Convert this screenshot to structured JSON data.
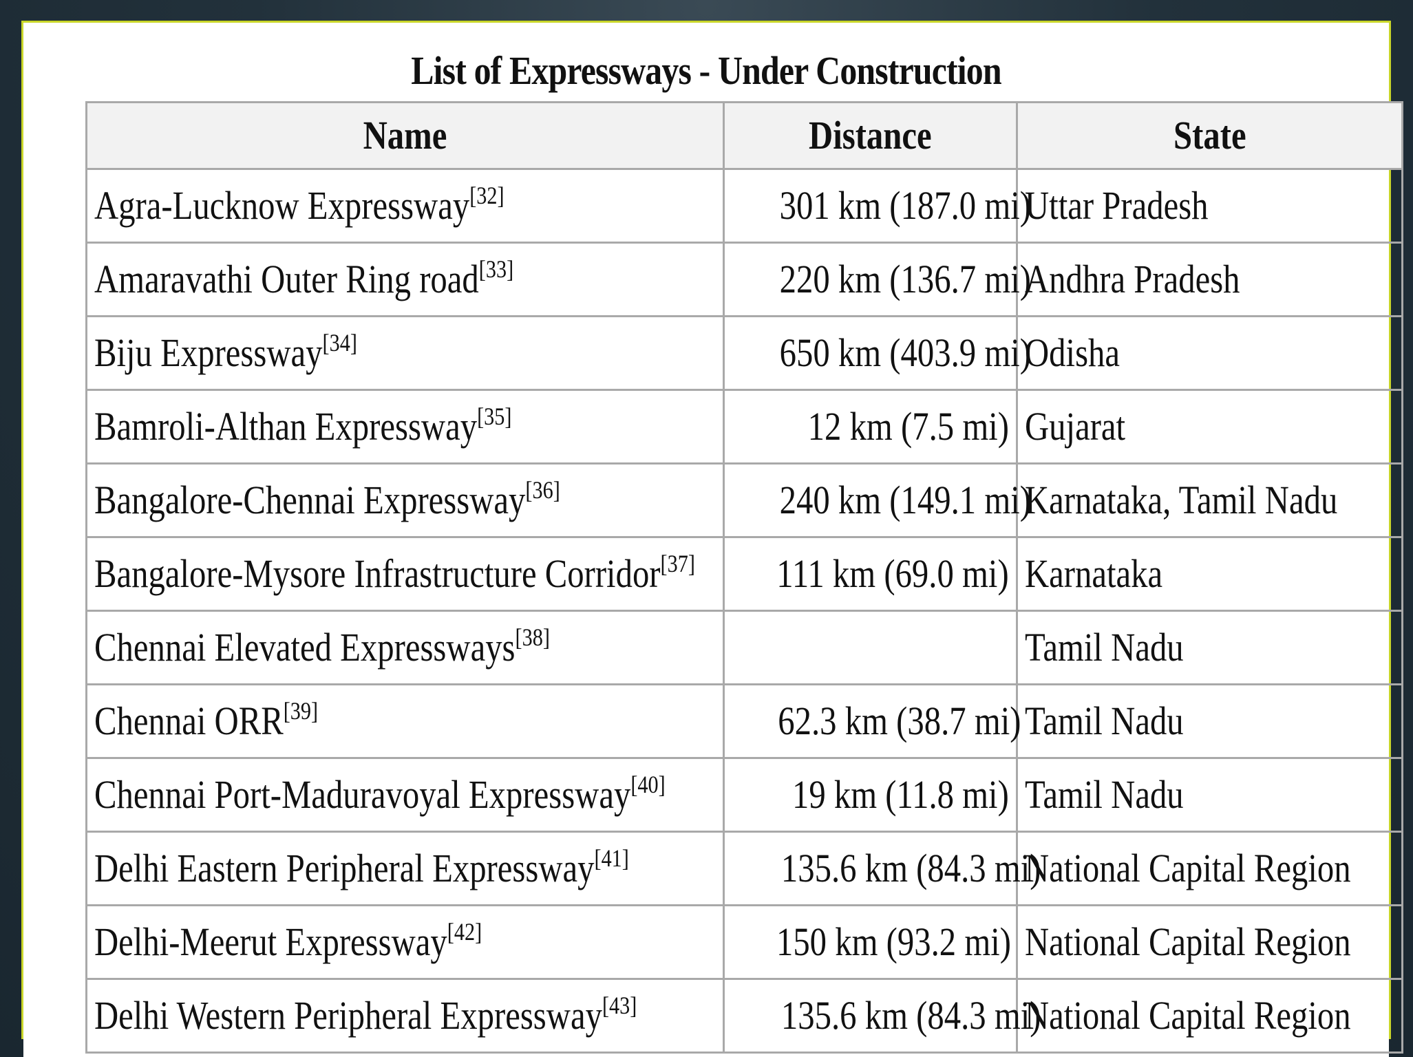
{
  "title": "List of Expressways - Under Construction",
  "columns": [
    "Name",
    "Distance",
    "State"
  ],
  "rows": [
    {
      "name": "Agra-Lucknow Expressway",
      "ref": "[32]",
      "distance": "301 km (187.0 mi)",
      "state": "Uttar Pradesh"
    },
    {
      "name": "Amaravathi Outer Ring road",
      "ref": "[33]",
      "distance": "220 km (136.7 mi)",
      "state": "Andhra Pradesh"
    },
    {
      "name": "Biju Expressway",
      "ref": "[34]",
      "distance": "650 km (403.9 mi)",
      "state": "Odisha"
    },
    {
      "name": "Bamroli-Althan Expressway",
      "ref": "[35]",
      "distance": "12 km (7.5 mi)",
      "state": "Gujarat"
    },
    {
      "name": "Bangalore-Chennai Expressway",
      "ref": "[36]",
      "distance": "240 km (149.1 mi)",
      "state": "Karnataka, Tamil Nadu"
    },
    {
      "name": "Bangalore-Mysore Infrastructure Corridor",
      "ref": "[37]",
      "distance": "111 km (69.0 mi)",
      "state": "Karnataka"
    },
    {
      "name": "Chennai Elevated Expressways",
      "ref": "[38]",
      "distance": "",
      "state": "Tamil Nadu"
    },
    {
      "name": "Chennai ORR",
      "ref": "[39]",
      "distance": "62.3 km (38.7 mi)",
      "state": "Tamil Nadu"
    },
    {
      "name": "Chennai Port-Maduravoyal Expressway",
      "ref": "[40]",
      "distance": "19 km (11.8 mi)",
      "state": "Tamil Nadu"
    },
    {
      "name": "Delhi Eastern Peripheral Expressway",
      "ref": "[41]",
      "distance": "135.6 km (84.3 mi)",
      "state": "National Capital Region"
    },
    {
      "name": "Delhi-Meerut Expressway",
      "ref": "[42]",
      "distance": "150 km (93.2 mi)",
      "state": "National Capital Region"
    },
    {
      "name": "Delhi Western Peripheral Expressway",
      "ref": "[43]",
      "distance": "135.6 km (84.3 mi)",
      "state": "National Capital Region"
    }
  ]
}
